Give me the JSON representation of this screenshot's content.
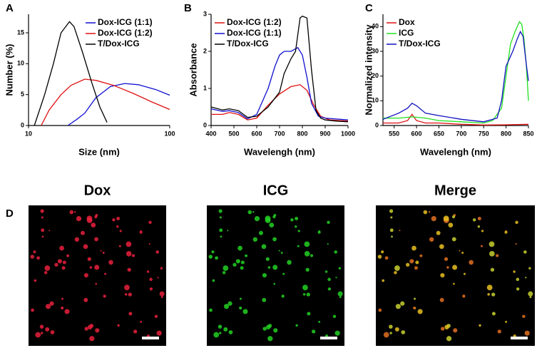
{
  "chart_data": [
    {
      "type": "line",
      "panel_label": "A",
      "x_label": "Size (nm)",
      "y_label": "Number (%)",
      "xscale": "log",
      "xlim": [
        10,
        100
      ],
      "xticks": [
        10,
        100
      ],
      "ylim": [
        0,
        18
      ],
      "yticks": [
        0,
        5,
        10,
        15
      ],
      "legend": "upper right",
      "series": [
        {
          "name": "Dox-ICG (1:1)",
          "color": "#1010d0",
          "x": [
            19,
            22,
            25,
            30,
            38,
            48,
            60,
            80,
            100
          ],
          "values": [
            0,
            1,
            2,
            4.5,
            6.3,
            6.8,
            6.6,
            5.8,
            4.9
          ]
        },
        {
          "name": "Dox-ICG (1:2)",
          "color": "#e01010",
          "x": [
            12.3,
            14,
            17,
            20,
            25,
            30,
            40,
            55,
            75,
            100
          ],
          "values": [
            0,
            2.5,
            5,
            6.5,
            7.5,
            7.3,
            6.5,
            5.2,
            3.8,
            2.6
          ]
        },
        {
          "name": "T/Dox-ICG",
          "color": "#000000",
          "x": [
            11,
            13,
            15,
            17,
            19.5,
            21,
            24,
            28,
            32,
            36
          ],
          "values": [
            0,
            5,
            10,
            15,
            16.8,
            16,
            12,
            7,
            3,
            0.5
          ]
        }
      ]
    },
    {
      "type": "line",
      "panel_label": "B",
      "x_label": "Wavelengh (nm)",
      "y_label": "Absorbance",
      "xlim": [
        400,
        1000
      ],
      "xticks": [
        400,
        500,
        600,
        700,
        800,
        900,
        1000
      ],
      "ylim": [
        0,
        3
      ],
      "yticks": [
        0,
        1,
        2,
        3
      ],
      "legend": "upper left",
      "series": [
        {
          "name": "Dox-ICG (1:2)",
          "color": "#e01010",
          "x": [
            400,
            450,
            480,
            520,
            560,
            600,
            650,
            700,
            750,
            790,
            820,
            850,
            880,
            920,
            1000
          ],
          "values": [
            0.3,
            0.3,
            0.35,
            0.3,
            0.15,
            0.2,
            0.55,
            0.85,
            1.05,
            1.1,
            0.95,
            0.55,
            0.25,
            0.15,
            0.12
          ]
        },
        {
          "name": "Dox-ICG (1:1)",
          "color": "#1010d0",
          "x": [
            400,
            450,
            480,
            520,
            560,
            600,
            650,
            680,
            700,
            720,
            750,
            780,
            800,
            820,
            840,
            870,
            900,
            1000
          ],
          "values": [
            0.45,
            0.38,
            0.4,
            0.35,
            0.18,
            0.3,
            1.0,
            1.6,
            1.9,
            2.0,
            2.0,
            2.1,
            1.9,
            1.3,
            0.6,
            0.25,
            0.2,
            0.15
          ]
        },
        {
          "name": "T/Dox-ICG",
          "color": "#000000",
          "x": [
            400,
            450,
            480,
            520,
            560,
            600,
            650,
            700,
            720,
            750,
            770,
            790,
            800,
            820,
            840,
            860,
            880,
            900,
            950,
            1000
          ],
          "values": [
            0.5,
            0.42,
            0.45,
            0.4,
            0.22,
            0.25,
            0.5,
            0.9,
            1.4,
            1.8,
            2.0,
            2.9,
            2.95,
            2.9,
            1.5,
            0.4,
            0.2,
            0.15,
            0.12,
            0.1
          ]
        }
      ]
    },
    {
      "type": "line",
      "panel_label": "C",
      "x_label": "Wavelengh (nm)",
      "y_label": "Normalized intensity",
      "xlim": [
        525,
        850
      ],
      "xticks": [
        550,
        600,
        650,
        700,
        750,
        800,
        850
      ],
      "ylim": [
        0,
        45
      ],
      "yticks": [
        0,
        10,
        20,
        30,
        40
      ],
      "legend": "upper left",
      "series": [
        {
          "name": "Dox",
          "color": "#e01010",
          "x": [
            525,
            560,
            580,
            590,
            600,
            620,
            650,
            700,
            750,
            800,
            850
          ],
          "values": [
            1,
            1,
            2,
            4.5,
            2,
            1,
            1,
            0.5,
            0.2,
            0.3,
            0.5
          ]
        },
        {
          "name": "ICG",
          "color": "#20e020",
          "x": [
            525,
            560,
            590,
            620,
            650,
            700,
            750,
            770,
            790,
            800,
            810,
            820,
            830,
            835,
            840,
            845,
            850
          ],
          "values": [
            3,
            3,
            3.5,
            3,
            2,
            1.5,
            1,
            2,
            7,
            20,
            33,
            38,
            42,
            41,
            35,
            25,
            10
          ]
        },
        {
          "name": "T/Dox-ICG",
          "color": "#1010c0",
          "x": [
            525,
            560,
            580,
            590,
            600,
            620,
            650,
            700,
            750,
            780,
            790,
            800,
            815,
            825,
            832,
            838,
            845,
            850
          ],
          "values": [
            2.5,
            5,
            7,
            9,
            8,
            5,
            4,
            2.5,
            1.5,
            3,
            10,
            24,
            30,
            35,
            38,
            36,
            25,
            18
          ]
        }
      ]
    }
  ],
  "microscopy": {
    "label": "D",
    "panels": [
      {
        "title": "Dox"
      },
      {
        "title": "ICG"
      },
      {
        "title": "Merge"
      }
    ]
  }
}
